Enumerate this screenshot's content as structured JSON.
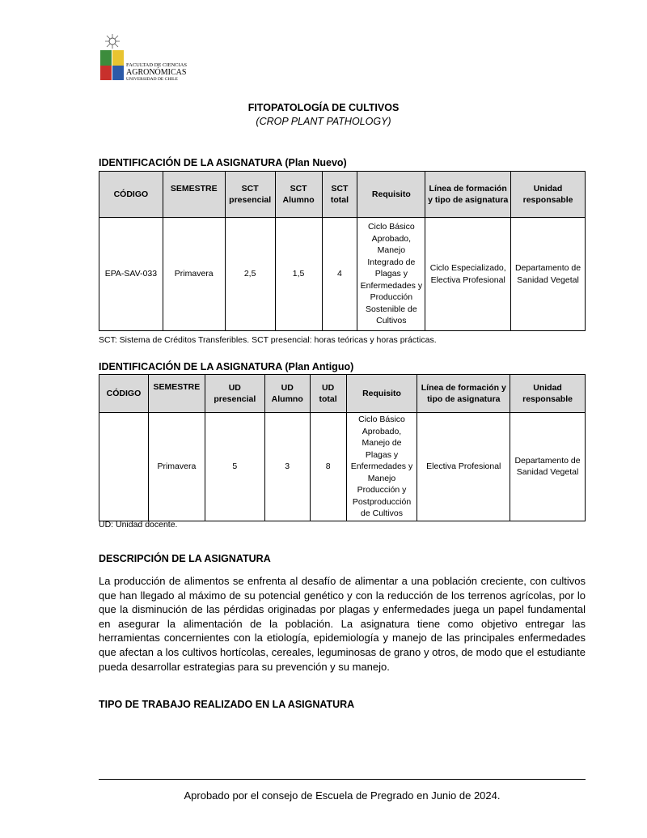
{
  "logo": {
    "line1": "FACULTAD DE CIENCIAS",
    "line2": "AGRONÓMICAS",
    "line3": "UNIVERSIDAD DE CHILE"
  },
  "title": "FITOPATOLOGÍA DE CULTIVOS",
  "subtitle": "(CROP PLANT PATHOLOGY)",
  "plan_nuevo": {
    "heading": "IDENTIFICACIÓN DE LA ASIGNATURA (Plan Nuevo)",
    "headers": [
      "CÓDIGO",
      "SEMESTRE",
      "SCT presencial",
      "SCT Alumno",
      "SCT total",
      "Requisito",
      "Línea de formación y tipo de asignatura",
      "Unidad responsable"
    ],
    "row": [
      "EPA-SAV-033",
      "Primavera",
      "2,5",
      "1,5",
      "4",
      "Ciclo Básico Aprobado, Manejo Integrado de Plagas y Enfermedades y Producción Sostenible de Cultivos",
      "Ciclo Especializado, Electiva Profesional",
      "Departamento de Sanidad Vegetal"
    ],
    "note": "SCT: Sistema de Créditos Transferibles. SCT presencial: horas teóricas y horas prácticas."
  },
  "plan_antiguo": {
    "heading": "IDENTIFICACIÓN DE LA ASIGNATURA (Plan Antiguo)",
    "headers": [
      "CÓDIGO",
      "SEMESTRE",
      "UD presencial",
      "UD Alumno",
      "UD total",
      "Requisito",
      "Línea de formación y tipo de asignatura",
      "Unidad responsable"
    ],
    "row": [
      "",
      "Primavera",
      "5",
      "3",
      "8",
      "Ciclo Básico Aprobado, Manejo de Plagas y Enfermedades y Manejo Producción y Postproducción de Cultivos",
      "Electiva Profesional",
      "Departamento de Sanidad Vegetal"
    ],
    "note": "UD: Unidad docente."
  },
  "descripcion": {
    "heading": "DESCRIPCIÓN DE LA ASIGNATURA",
    "text": "La producción de alimentos se enfrenta al desafío de alimentar a una población creciente, con cultivos que han llegado al máximo de su potencial genético y con la reducción de los terrenos agrícolas, por lo que la disminución de las pérdidas originadas por plagas y enfermedades juega un papel fundamental en asegurar la alimentación de la población. La asignatura tiene como objetivo entregar las herramientas concernientes con la etiología, epidemiología y manejo de las principales enfermedades que afectan a los cultivos hortícolas, cereales, leguminosas de grano y otros, de modo que el estudiante pueda desarrollar estrategias para su prevención y su manejo."
  },
  "tipo_trabajo": {
    "heading": "TIPO DE TRABAJO REALIZADO EN LA ASIGNATURA"
  },
  "footer": "Aprobado por el consejo de Escuela de Pregrado en Junio de 2024."
}
